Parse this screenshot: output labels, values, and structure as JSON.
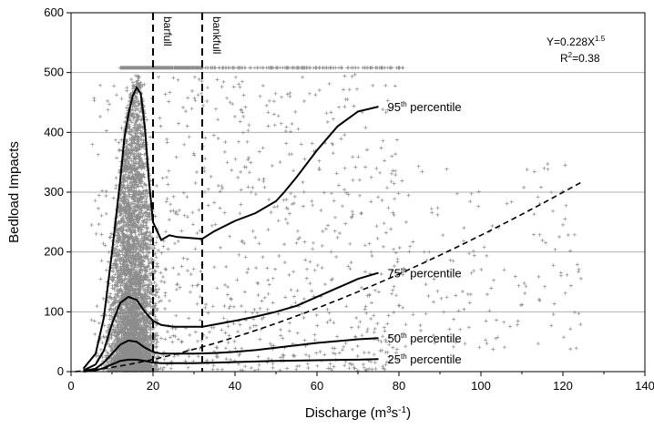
{
  "chart_data": {
    "type": "scatter",
    "xlabel_main": "Discharge (m",
    "xlabel_sup": "3",
    "xlabel_mid": "s",
    "xlabel_sup2": "-1",
    "xlabel_end": ")",
    "ylabel": "Bedload Impacts",
    "xlim": [
      0,
      140
    ],
    "ylim": [
      0,
      600
    ],
    "xticks": [
      "0",
      "20",
      "40",
      "60",
      "80",
      "100",
      "120",
      "140"
    ],
    "yticks": [
      "0",
      "100",
      "200",
      "300",
      "400",
      "500",
      "600"
    ],
    "grid": "horizontal",
    "colors": {
      "scatter": "#8c8c8c",
      "curves": "#000000",
      "grid": "#b0b0b0"
    },
    "vlines": [
      {
        "label": "barfull",
        "x": 20
      },
      {
        "label": "bankfull",
        "x": 32
      }
    ],
    "equation": {
      "text": "Y=0.228X",
      "exp": "1.5",
      "r2_base": "R",
      "r2_sup": "2",
      "r2_rest": "=0.38",
      "coef": 0.228,
      "power": 1.5
    },
    "percentiles": [
      {
        "num": "95",
        "sup": "th",
        "text": " percentile",
        "x": [
          3,
          6,
          8,
          10,
          12,
          13,
          14,
          15,
          16,
          17,
          18,
          19,
          20,
          22,
          24,
          26,
          28,
          30,
          32,
          35,
          40,
          45,
          50,
          52,
          55,
          60,
          65,
          70,
          75
        ],
        "y": [
          5,
          30,
          90,
          200,
          320,
          390,
          430,
          460,
          475,
          465,
          410,
          320,
          250,
          220,
          228,
          225,
          224,
          223,
          222,
          235,
          252,
          265,
          285,
          300,
          325,
          370,
          410,
          435,
          443
        ]
      },
      {
        "num": "75",
        "sup": "th",
        "text": " percentile",
        "x": [
          3,
          6,
          8,
          10,
          12,
          14,
          16,
          18,
          20,
          22,
          25,
          28,
          32,
          36,
          40,
          45,
          50,
          55,
          60,
          65,
          70,
          75
        ],
        "y": [
          2,
          12,
          35,
          80,
          115,
          125,
          120,
          100,
          85,
          78,
          75,
          75,
          75,
          80,
          85,
          92,
          100,
          110,
          125,
          140,
          155,
          165
        ]
      },
      {
        "num": "50",
        "sup": "th",
        "text": " percentile",
        "x": [
          3,
          6,
          8,
          10,
          12,
          14,
          16,
          18,
          20,
          22,
          25,
          30,
          35,
          40,
          45,
          50,
          55,
          60,
          65,
          70,
          75
        ],
        "y": [
          1,
          5,
          15,
          30,
          45,
          52,
          50,
          40,
          33,
          30,
          30,
          30,
          31,
          33,
          36,
          40,
          44,
          48,
          51,
          54,
          56
        ]
      },
      {
        "num": "25",
        "sup": "th",
        "text": " percentile",
        "x": [
          3,
          6,
          8,
          10,
          12,
          14,
          16,
          18,
          20,
          22,
          25,
          30,
          35,
          40,
          50,
          60,
          70,
          75
        ],
        "y": [
          0,
          2,
          6,
          12,
          18,
          20,
          20,
          18,
          15,
          14,
          14,
          14,
          15,
          16,
          18,
          19,
          20,
          21
        ]
      }
    ]
  }
}
